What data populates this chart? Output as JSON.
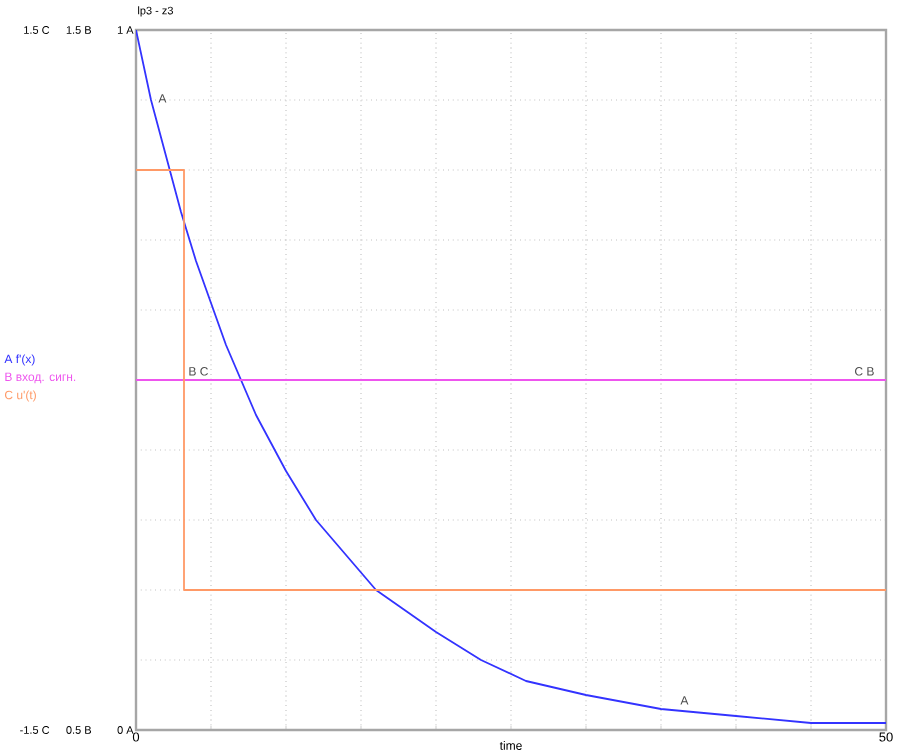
{
  "chart_data": {
    "type": "line",
    "title": "lp3 - z3",
    "xlabel": "time",
    "x": [
      0,
      1,
      2,
      3,
      4,
      5,
      6,
      7,
      8,
      10,
      12,
      14,
      16,
      18,
      20,
      23,
      26,
      30,
      35,
      40,
      45,
      50
    ],
    "series": [
      {
        "name": "A f'(x)",
        "color": "#3333ff",
        "values": [
          1,
          0.9,
          0.82,
          0.74,
          0.67,
          0.61,
          0.55,
          0.5,
          0.45,
          0.37,
          0.3,
          0.25,
          0.2,
          0.17,
          0.14,
          0.1,
          0.07,
          0.05,
          0.03,
          0.02,
          0.01,
          0.01
        ]
      },
      {
        "name": "B вход. сигн.",
        "color": "#ee55ee",
        "axis": "y2",
        "x": [
          0,
          50
        ],
        "values": [
          1,
          1
        ]
      },
      {
        "name": "C u'(t)",
        "color": "#ff9966",
        "axis": "y3",
        "type": "step",
        "x": [
          0,
          3.2,
          50
        ],
        "values": [
          0.9,
          -0.9,
          -0.9
        ]
      }
    ],
    "xlim": [
      0,
      50
    ],
    "xticks": [
      0,
      {
        "value": 5,
        "label": null
      },
      {
        "value": 10,
        "label": null
      },
      {
        "value": 15,
        "label": null
      },
      {
        "value": 20,
        "label": null
      },
      {
        "value": 25,
        "label": null
      },
      {
        "value": 30,
        "label": null
      },
      {
        "value": 35,
        "label": null
      },
      {
        "value": 40,
        "label": null
      },
      {
        "value": 45,
        "label": null
      },
      50
    ],
    "ylim": [
      0,
      1
    ],
    "yticks": [
      {
        "value": 0,
        "label": "0 A"
      },
      {
        "value": 0.1,
        "label": null
      },
      {
        "value": 0.2,
        "label": null
      },
      {
        "value": 0.3,
        "label": null
      },
      {
        "value": 0.4,
        "label": null
      },
      {
        "value": 0.5,
        "label": null
      },
      {
        "value": 0.6,
        "label": null
      },
      {
        "value": 0.7,
        "label": null
      },
      {
        "value": 0.8,
        "label": null
      },
      {
        "value": 0.9,
        "label": null
      },
      {
        "value": 1,
        "label": "1 A"
      }
    ],
    "y2lim": [
      0.5,
      1.5
    ],
    "y2ticks": [
      {
        "value": 0.5,
        "label": "0.5 B"
      },
      {
        "value": 1.5,
        "label": "1.5 B"
      }
    ],
    "y3lim": [
      -1.5,
      1.5
    ],
    "y3ticks": [
      {
        "value": -1.5,
        "label": "-1.5 C"
      },
      {
        "value": 1.5,
        "label": "1.5 C"
      }
    ],
    "annotations": [
      {
        "text": "A",
        "x": 1.2,
        "y": 0.89
      },
      {
        "text": "B C",
        "x": 3.2,
        "y": 0.5
      },
      {
        "text": "C B",
        "x": 47.6,
        "y": 0.5
      },
      {
        "text": "A",
        "x": 36,
        "y": 0.03
      }
    ],
    "grid": true,
    "legend": "left"
  }
}
